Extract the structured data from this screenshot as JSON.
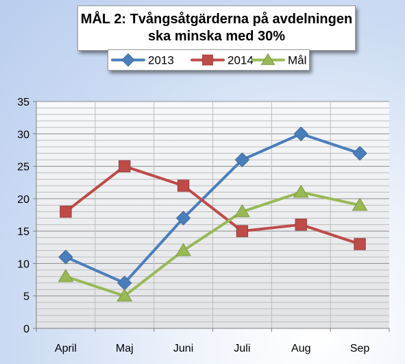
{
  "chart_data": {
    "type": "line",
    "title": "MÅL 2: Tvångsåtgärderna på avdelningen ska minska med 30%",
    "categories": [
      "April",
      "Maj",
      "Juni",
      "Juli",
      "Aug",
      "Sep"
    ],
    "series": [
      {
        "name": "2013",
        "values": [
          11,
          7,
          17,
          26,
          30,
          27
        ],
        "color": "#4a7ebb",
        "marker": "diamond"
      },
      {
        "name": "2014",
        "values": [
          18,
          25,
          22,
          15,
          16,
          13
        ],
        "color": "#be4b48",
        "marker": "square"
      },
      {
        "name": "Mål",
        "values": [
          8,
          5,
          12,
          18,
          21,
          19
        ],
        "color": "#98b954",
        "marker": "triangle"
      }
    ],
    "ylim": [
      0,
      35
    ],
    "yticks": [
      0,
      5,
      10,
      15,
      20,
      25,
      30,
      35
    ],
    "grid": true,
    "minor_grid": true,
    "legend_position": "top"
  }
}
